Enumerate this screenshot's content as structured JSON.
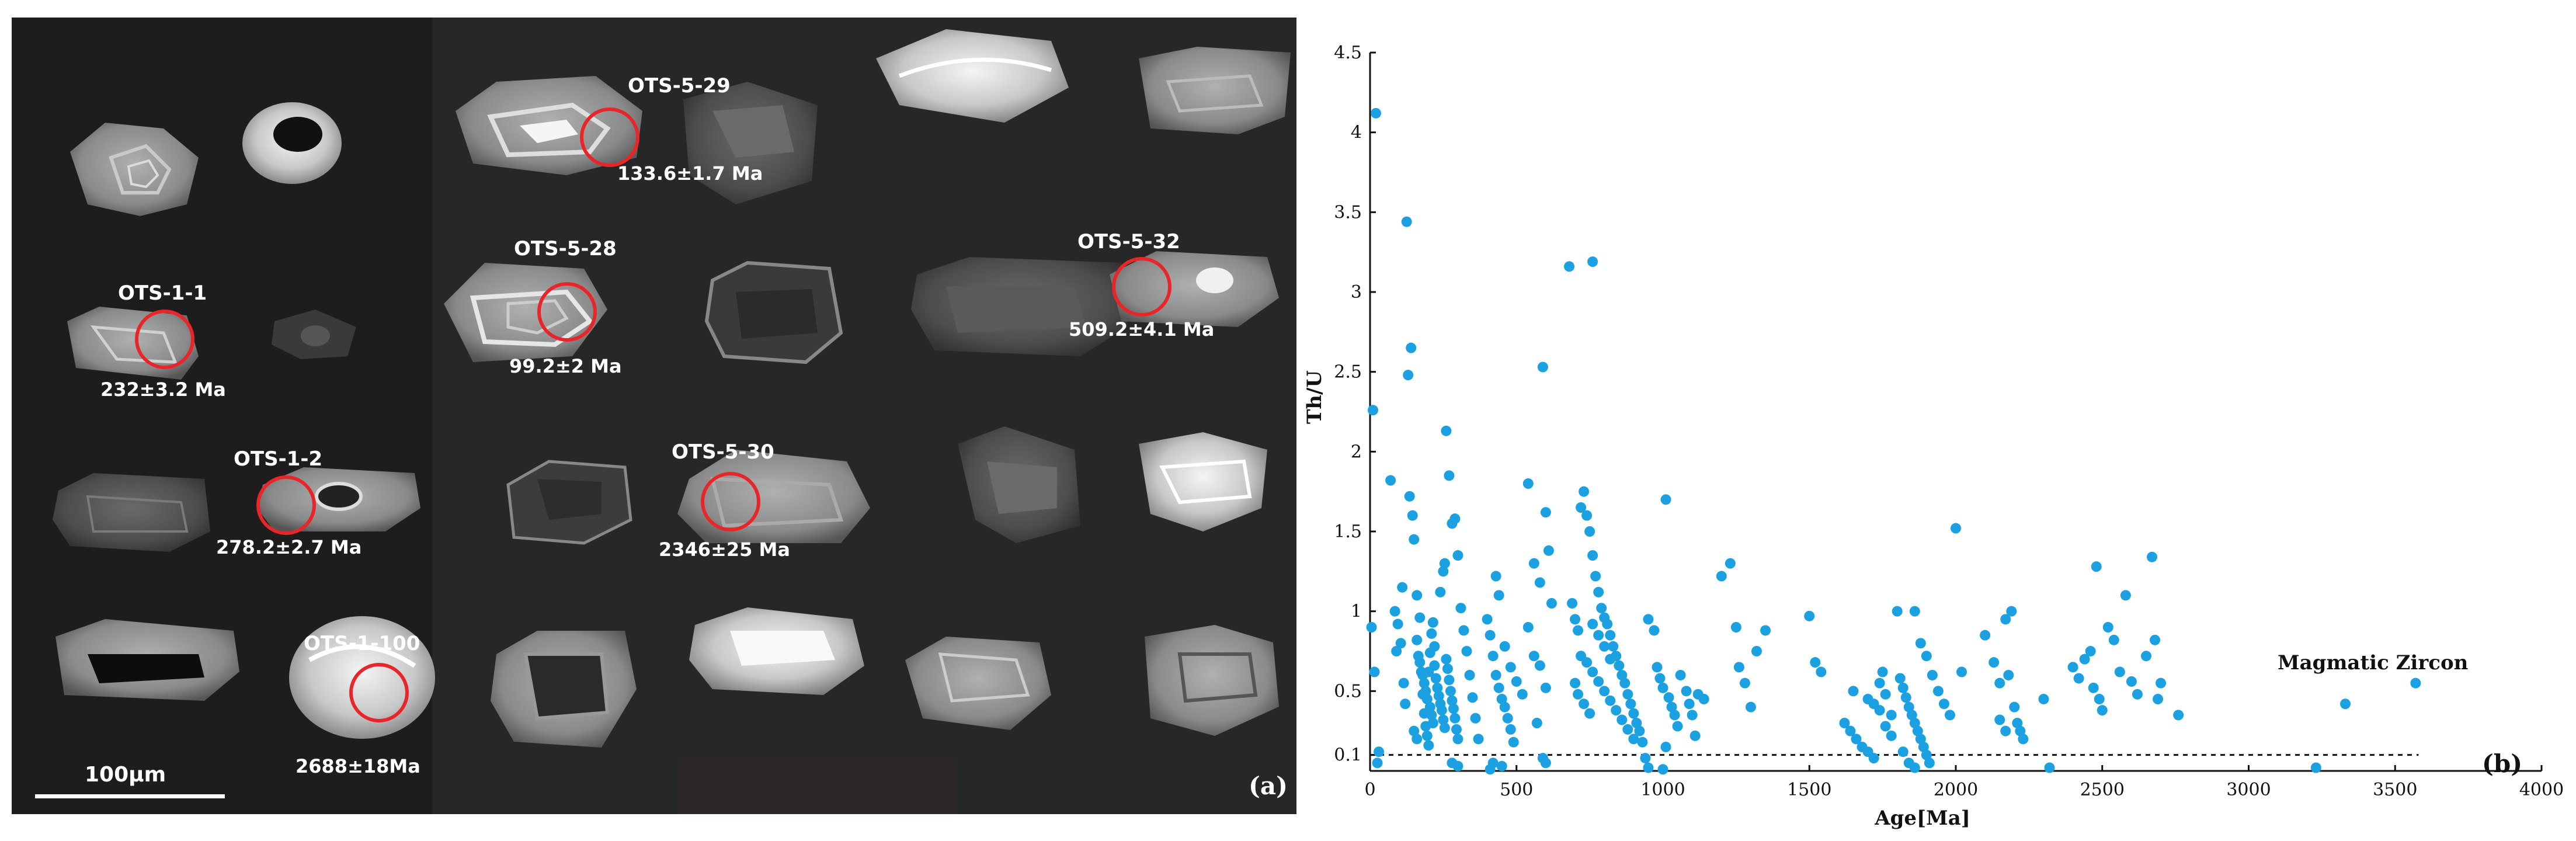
{
  "panel_a": {
    "tag": "(a)",
    "scale_bar_label": "100μm",
    "grains": [
      {
        "id": "OTS-1-1",
        "age": "232±3.2 Ma"
      },
      {
        "id": "OTS-1-2",
        "age": "278.2±2.7 Ma"
      },
      {
        "id": "OTS-1-100",
        "age": "2688±18Ma"
      },
      {
        "id": "OTS-5-29",
        "age": "133.6±1.7 Ma"
      },
      {
        "id": "OTS-5-28",
        "age": "99.2±2 Ma"
      },
      {
        "id": "OTS-5-32",
        "age": "509.2±4.1 Ma"
      },
      {
        "id": "OTS-5-30",
        "age": "2346±25 Ma"
      }
    ]
  },
  "panel_b": {
    "tag": "(b)",
    "annotation": "Magmatic Zircon",
    "colors": {
      "points": "#1ba1e2",
      "axis": "#111111"
    }
  },
  "chart_data": {
    "type": "scatter",
    "xlabel": "Age[Ma]",
    "ylabel": "Th/U",
    "xlim": [
      0,
      4000
    ],
    "ylim": [
      0,
      4.5
    ],
    "xticks": [
      "0",
      "500",
      "1000",
      "1500",
      "2000",
      "2500",
      "3000",
      "3500",
      "4000"
    ],
    "yticks": [
      "0.1",
      "0.5",
      "1",
      "1.5",
      "2",
      "2.5",
      "3",
      "3.5",
      "4",
      "4.5"
    ],
    "reference_line": {
      "y": 0.1,
      "style": "dashed"
    },
    "grid": false,
    "points": [
      [
        20,
        4.12
      ],
      [
        10,
        2.26
      ],
      [
        5,
        0.9
      ],
      [
        15,
        0.62
      ],
      [
        25,
        0.05
      ],
      [
        30,
        0.12
      ],
      [
        70,
        1.82
      ],
      [
        85,
        1.0
      ],
      [
        90,
        0.75
      ],
      [
        95,
        0.92
      ],
      [
        105,
        0.8
      ],
      [
        110,
        1.15
      ],
      [
        115,
        0.55
      ],
      [
        120,
        0.42
      ],
      [
        125,
        3.44
      ],
      [
        130,
        2.48
      ],
      [
        140,
        2.65
      ],
      [
        135,
        1.72
      ],
      [
        145,
        1.6
      ],
      [
        150,
        1.45
      ],
      [
        160,
        1.1
      ],
      [
        170,
        0.96
      ],
      [
        180,
        0.6
      ],
      [
        185,
        0.55
      ],
      [
        190,
        0.5
      ],
      [
        195,
        0.45
      ],
      [
        200,
        0.62
      ],
      [
        205,
        0.4
      ],
      [
        210,
        0.35
      ],
      [
        215,
        0.3
      ],
      [
        220,
        0.66
      ],
      [
        225,
        0.58
      ],
      [
        230,
        0.52
      ],
      [
        235,
        0.47
      ],
      [
        240,
        0.42
      ],
      [
        245,
        0.38
      ],
      [
        250,
        0.32
      ],
      [
        255,
        0.27
      ],
      [
        260,
        0.7
      ],
      [
        265,
        0.64
      ],
      [
        270,
        0.57
      ],
      [
        275,
        0.5
      ],
      [
        280,
        0.44
      ],
      [
        285,
        0.39
      ],
      [
        290,
        0.33
      ],
      [
        295,
        0.26
      ],
      [
        300,
        0.2
      ],
      [
        160,
        0.82
      ],
      [
        165,
        0.72
      ],
      [
        170,
        0.68
      ],
      [
        175,
        0.62
      ],
      [
        180,
        0.48
      ],
      [
        185,
        0.36
      ],
      [
        190,
        0.28
      ],
      [
        195,
        0.22
      ],
      [
        200,
        0.16
      ],
      [
        205,
        0.74
      ],
      [
        210,
        0.86
      ],
      [
        215,
        0.93
      ],
      [
        220,
        0.78
      ],
      [
        240,
        1.12
      ],
      [
        250,
        1.25
      ],
      [
        255,
        1.3
      ],
      [
        260,
        2.13
      ],
      [
        270,
        1.85
      ],
      [
        280,
        1.55
      ],
      [
        290,
        1.58
      ],
      [
        300,
        1.35
      ],
      [
        310,
        1.02
      ],
      [
        320,
        0.88
      ],
      [
        330,
        0.75
      ],
      [
        340,
        0.6
      ],
      [
        350,
        0.46
      ],
      [
        360,
        0.33
      ],
      [
        370,
        0.2
      ],
      [
        150,
        0.25
      ],
      [
        160,
        0.2
      ],
      [
        280,
        0.05
      ],
      [
        300,
        0.03
      ],
      [
        410,
        0.01
      ],
      [
        420,
        0.05
      ],
      [
        450,
        0.03
      ],
      [
        400,
        0.95
      ],
      [
        410,
        0.85
      ],
      [
        420,
        0.72
      ],
      [
        430,
        0.6
      ],
      [
        440,
        0.52
      ],
      [
        450,
        0.45
      ],
      [
        460,
        0.4
      ],
      [
        470,
        0.33
      ],
      [
        480,
        0.26
      ],
      [
        490,
        0.18
      ],
      [
        430,
        1.22
      ],
      [
        440,
        1.1
      ],
      [
        460,
        0.78
      ],
      [
        480,
        0.65
      ],
      [
        500,
        0.56
      ],
      [
        520,
        0.48
      ],
      [
        540,
        0.9
      ],
      [
        560,
        0.72
      ],
      [
        580,
        0.66
      ],
      [
        600,
        0.52
      ],
      [
        540,
        1.8
      ],
      [
        560,
        1.3
      ],
      [
        580,
        1.18
      ],
      [
        590,
        2.53
      ],
      [
        600,
        1.62
      ],
      [
        610,
        1.38
      ],
      [
        620,
        1.05
      ],
      [
        570,
        0.3
      ],
      [
        590,
        0.08
      ],
      [
        600,
        0.05
      ],
      [
        680,
        3.16
      ],
      [
        760,
        3.19
      ],
      [
        690,
        1.05
      ],
      [
        700,
        0.95
      ],
      [
        710,
        0.88
      ],
      [
        720,
        1.65
      ],
      [
        730,
        1.75
      ],
      [
        740,
        1.6
      ],
      [
        750,
        1.5
      ],
      [
        760,
        1.35
      ],
      [
        770,
        1.22
      ],
      [
        780,
        1.12
      ],
      [
        790,
        1.02
      ],
      [
        800,
        0.96
      ],
      [
        810,
        0.92
      ],
      [
        820,
        0.85
      ],
      [
        830,
        0.78
      ],
      [
        840,
        0.72
      ],
      [
        850,
        0.66
      ],
      [
        860,
        0.6
      ],
      [
        870,
        0.55
      ],
      [
        880,
        0.48
      ],
      [
        890,
        0.42
      ],
      [
        900,
        0.36
      ],
      [
        910,
        0.3
      ],
      [
        920,
        0.25
      ],
      [
        930,
        0.18
      ],
      [
        940,
        0.08
      ],
      [
        950,
        0.02
      ],
      [
        720,
        0.72
      ],
      [
        740,
        0.68
      ],
      [
        760,
        0.62
      ],
      [
        780,
        0.56
      ],
      [
        800,
        0.5
      ],
      [
        820,
        0.44
      ],
      [
        840,
        0.38
      ],
      [
        860,
        0.32
      ],
      [
        880,
        0.26
      ],
      [
        900,
        0.2
      ],
      [
        760,
        0.92
      ],
      [
        780,
        0.85
      ],
      [
        800,
        0.78
      ],
      [
        820,
        0.7
      ],
      [
        700,
        0.55
      ],
      [
        710,
        0.48
      ],
      [
        730,
        0.42
      ],
      [
        750,
        0.36
      ],
      [
        950,
        0.95
      ],
      [
        970,
        0.88
      ],
      [
        980,
        0.65
      ],
      [
        990,
        0.58
      ],
      [
        1000,
        0.52
      ],
      [
        1010,
        1.7
      ],
      [
        1020,
        0.46
      ],
      [
        1030,
        0.4
      ],
      [
        1040,
        0.35
      ],
      [
        1050,
        0.28
      ],
      [
        1060,
        0.6
      ],
      [
        1080,
        0.5
      ],
      [
        1090,
        0.42
      ],
      [
        1100,
        0.35
      ],
      [
        1110,
        0.22
      ],
      [
        1120,
        0.48
      ],
      [
        1140,
        0.45
      ],
      [
        1000,
        0.01
      ],
      [
        1010,
        0.15
      ],
      [
        1200,
        1.22
      ],
      [
        1230,
        1.3
      ],
      [
        1250,
        0.9
      ],
      [
        1260,
        0.65
      ],
      [
        1280,
        0.55
      ],
      [
        1300,
        0.4
      ],
      [
        1320,
        0.75
      ],
      [
        1350,
        0.88
      ],
      [
        1500,
        0.97
      ],
      [
        1520,
        0.68
      ],
      [
        1540,
        0.62
      ],
      [
        1650,
        0.5
      ],
      [
        1700,
        0.45
      ],
      [
        1720,
        0.42
      ],
      [
        1740,
        0.38
      ],
      [
        1750,
        0.62
      ],
      [
        1760,
        0.28
      ],
      [
        1780,
        0.22
      ],
      [
        1800,
        1.0
      ],
      [
        1810,
        0.58
      ],
      [
        1820,
        0.52
      ],
      [
        1830,
        0.46
      ],
      [
        1840,
        0.4
      ],
      [
        1850,
        0.35
      ],
      [
        1860,
        0.3
      ],
      [
        1870,
        0.25
      ],
      [
        1880,
        0.2
      ],
      [
        1890,
        0.15
      ],
      [
        1900,
        0.1
      ],
      [
        1910,
        0.05
      ],
      [
        1860,
        1.0
      ],
      [
        1880,
        0.8
      ],
      [
        1900,
        0.72
      ],
      [
        1920,
        0.6
      ],
      [
        1940,
        0.5
      ],
      [
        1960,
        0.42
      ],
      [
        1980,
        0.35
      ],
      [
        2000,
        1.52
      ],
      [
        2020,
        0.62
      ],
      [
        1620,
        0.3
      ],
      [
        1640,
        0.25
      ],
      [
        1660,
        0.2
      ],
      [
        1680,
        0.15
      ],
      [
        1700,
        0.12
      ],
      [
        1720,
        0.08
      ],
      [
        1740,
        0.55
      ],
      [
        1760,
        0.48
      ],
      [
        1780,
        0.35
      ],
      [
        1820,
        0.12
      ],
      [
        1840,
        0.05
      ],
      [
        1860,
        0.02
      ],
      [
        2100,
        0.85
      ],
      [
        2130,
        0.68
      ],
      [
        2150,
        0.55
      ],
      [
        2170,
        0.95
      ],
      [
        2180,
        0.6
      ],
      [
        2190,
        1.0
      ],
      [
        2200,
        0.4
      ],
      [
        2210,
        0.3
      ],
      [
        2220,
        0.25
      ],
      [
        2230,
        0.2
      ],
      [
        2150,
        0.32
      ],
      [
        2170,
        0.25
      ],
      [
        2300,
        0.45
      ],
      [
        2320,
        0.02
      ],
      [
        2400,
        0.65
      ],
      [
        2420,
        0.58
      ],
      [
        2440,
        0.7
      ],
      [
        2460,
        0.75
      ],
      [
        2470,
        0.52
      ],
      [
        2480,
        1.28
      ],
      [
        2490,
        0.45
      ],
      [
        2500,
        0.38
      ],
      [
        2520,
        0.9
      ],
      [
        2540,
        0.82
      ],
      [
        2560,
        0.62
      ],
      [
        2580,
        1.1
      ],
      [
        2600,
        0.56
      ],
      [
        2620,
        0.48
      ],
      [
        2650,
        0.72
      ],
      [
        2670,
        1.34
      ],
      [
        2680,
        0.82
      ],
      [
        2690,
        0.45
      ],
      [
        2700,
        0.55
      ],
      [
        2760,
        0.35
      ],
      [
        3230,
        0.02
      ],
      [
        3330,
        0.42
      ],
      [
        3570,
        0.55
      ]
    ]
  }
}
